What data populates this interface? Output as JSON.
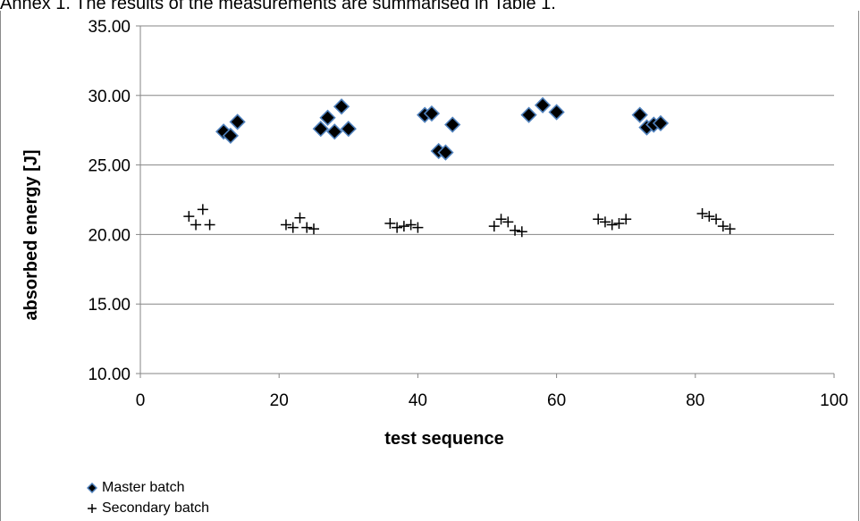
{
  "page": {
    "caption": "Annex 1. The results of the measurements are summarised in Table 1."
  },
  "chart_data": {
    "type": "scatter",
    "title": "",
    "xlabel": "test sequence",
    "ylabel": "absorbed energy [J]",
    "xlim": [
      0,
      100
    ],
    "ylim": [
      10,
      35
    ],
    "x_ticks": [
      "0",
      "20",
      "40",
      "60",
      "80",
      "100"
    ],
    "y_ticks": [
      "10.00",
      "15.00",
      "20.00",
      "25.00",
      "30.00",
      "35.00"
    ],
    "grid": "horizontal",
    "legend": "bottom-left",
    "colors": {
      "master_fill": "#000000",
      "master_edge": "#4f81bd",
      "secondary": "#000000",
      "grid": "#868686"
    },
    "series": [
      {
        "name": "Master batch",
        "marker": "diamond",
        "x": [
          12,
          13,
          14,
          26,
          27,
          28,
          29,
          30,
          41,
          42,
          43,
          44,
          45,
          56,
          58,
          60,
          72,
          73,
          74,
          75
        ],
        "y": [
          27.4,
          27.1,
          28.1,
          27.6,
          28.4,
          27.4,
          29.2,
          27.6,
          28.6,
          28.7,
          26.0,
          25.9,
          27.9,
          28.6,
          29.3,
          28.8,
          28.6,
          27.7,
          27.9,
          28.0
        ]
      },
      {
        "name": "Secondary batch",
        "marker": "plus",
        "x": [
          7,
          8,
          9,
          10,
          21,
          22,
          23,
          24,
          25,
          36,
          37,
          38,
          39,
          40,
          51,
          52,
          53,
          54,
          55,
          66,
          67,
          68,
          69,
          70,
          81,
          82,
          83,
          84,
          85
        ],
        "y": [
          21.3,
          20.7,
          21.8,
          20.7,
          20.7,
          20.5,
          21.2,
          20.5,
          20.4,
          20.8,
          20.5,
          20.6,
          20.7,
          20.5,
          20.6,
          21.1,
          20.9,
          20.3,
          20.2,
          21.1,
          20.9,
          20.7,
          20.8,
          21.1,
          21.5,
          21.3,
          21.1,
          20.6,
          20.4
        ]
      }
    ]
  }
}
